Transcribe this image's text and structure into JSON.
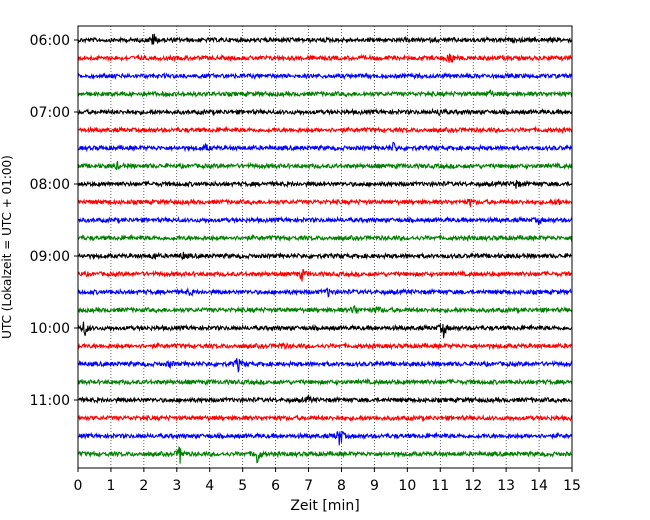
{
  "chart_data": {
    "type": "line",
    "title": "",
    "xlabel": "Zeit  [min]",
    "ylabel": "UTC (Lokalzeit = UTC + 01:00)",
    "xlim": [
      0,
      15
    ],
    "x_ticks": [
      "0",
      "1",
      "2",
      "3",
      "4",
      "5",
      "6",
      "7",
      "8",
      "9",
      "10",
      "11",
      "12",
      "13",
      "14",
      "15"
    ],
    "y_ticks": [
      "06:00",
      "07:00",
      "08:00",
      "09:00",
      "10:00",
      "11:00"
    ],
    "grid": "vertical dotted",
    "trace_interval_min": 15,
    "line_colors": [
      "#000000",
      "#ff0000",
      "#0000ff",
      "#008000"
    ],
    "traces": [
      {
        "start": "06:00",
        "color": "#000000",
        "events": [
          {
            "t": 2.3,
            "amp": 8
          }
        ]
      },
      {
        "start": "06:15",
        "color": "#ff0000",
        "events": [
          {
            "t": 11.3,
            "amp": 10
          }
        ]
      },
      {
        "start": "06:30",
        "color": "#0000ff",
        "events": []
      },
      {
        "start": "06:45",
        "color": "#008000",
        "events": [
          {
            "t": 12.5,
            "amp": 4
          }
        ]
      },
      {
        "start": "07:00",
        "color": "#000000",
        "events": [
          {
            "t": 11.0,
            "amp": 4
          }
        ]
      },
      {
        "start": "07:15",
        "color": "#ff0000",
        "events": []
      },
      {
        "start": "07:30",
        "color": "#0000ff",
        "events": [
          {
            "t": 9.6,
            "amp": 6
          },
          {
            "t": 3.9,
            "amp": 3
          }
        ]
      },
      {
        "start": "07:45",
        "color": "#008000",
        "events": [
          {
            "t": 1.2,
            "amp": 3
          }
        ]
      },
      {
        "start": "08:00",
        "color": "#000000",
        "events": [
          {
            "t": 13.3,
            "amp": 4
          }
        ]
      },
      {
        "start": "08:15",
        "color": "#ff0000",
        "events": [
          {
            "t": 11.9,
            "amp": 3
          },
          {
            "t": 14.6,
            "amp": 3
          }
        ]
      },
      {
        "start": "08:30",
        "color": "#0000ff",
        "events": [
          {
            "t": 14.0,
            "amp": 3
          }
        ]
      },
      {
        "start": "08:45",
        "color": "#008000",
        "events": []
      },
      {
        "start": "09:00",
        "color": "#000000",
        "events": [
          {
            "t": 2.3,
            "amp": 4
          },
          {
            "t": 3.2,
            "amp": 3
          }
        ]
      },
      {
        "start": "09:15",
        "color": "#ff0000",
        "events": [
          {
            "t": 6.8,
            "amp": 6
          }
        ]
      },
      {
        "start": "09:30",
        "color": "#0000ff",
        "events": [
          {
            "t": 7.6,
            "amp": 4
          },
          {
            "t": 3.4,
            "amp": 3
          }
        ]
      },
      {
        "start": "09:45",
        "color": "#008000",
        "events": [
          {
            "t": 8.4,
            "amp": 5
          },
          {
            "t": 9.1,
            "amp": 4
          }
        ]
      },
      {
        "start": "10:00",
        "color": "#000000",
        "events": [
          {
            "t": 0.2,
            "amp": 9
          },
          {
            "t": 11.1,
            "amp": 9
          }
        ]
      },
      {
        "start": "10:15",
        "color": "#ff0000",
        "events": [
          {
            "t": 6.2,
            "amp": 3
          }
        ]
      },
      {
        "start": "10:30",
        "color": "#0000ff",
        "events": [
          {
            "t": 4.85,
            "amp": 8
          },
          {
            "t": 2.8,
            "amp": 3
          }
        ]
      },
      {
        "start": "10:45",
        "color": "#008000",
        "events": []
      },
      {
        "start": "11:00",
        "color": "#000000",
        "events": [
          {
            "t": 7.0,
            "amp": 3
          }
        ]
      },
      {
        "start": "11:15",
        "color": "#ff0000",
        "events": []
      },
      {
        "start": "11:30",
        "color": "#0000ff",
        "events": [
          {
            "t": 7.95,
            "amp": 12
          }
        ]
      },
      {
        "start": "11:45",
        "color": "#008000",
        "events": [
          {
            "t": 3.1,
            "amp": 9
          },
          {
            "t": 5.45,
            "amp": 11
          }
        ]
      }
    ]
  }
}
